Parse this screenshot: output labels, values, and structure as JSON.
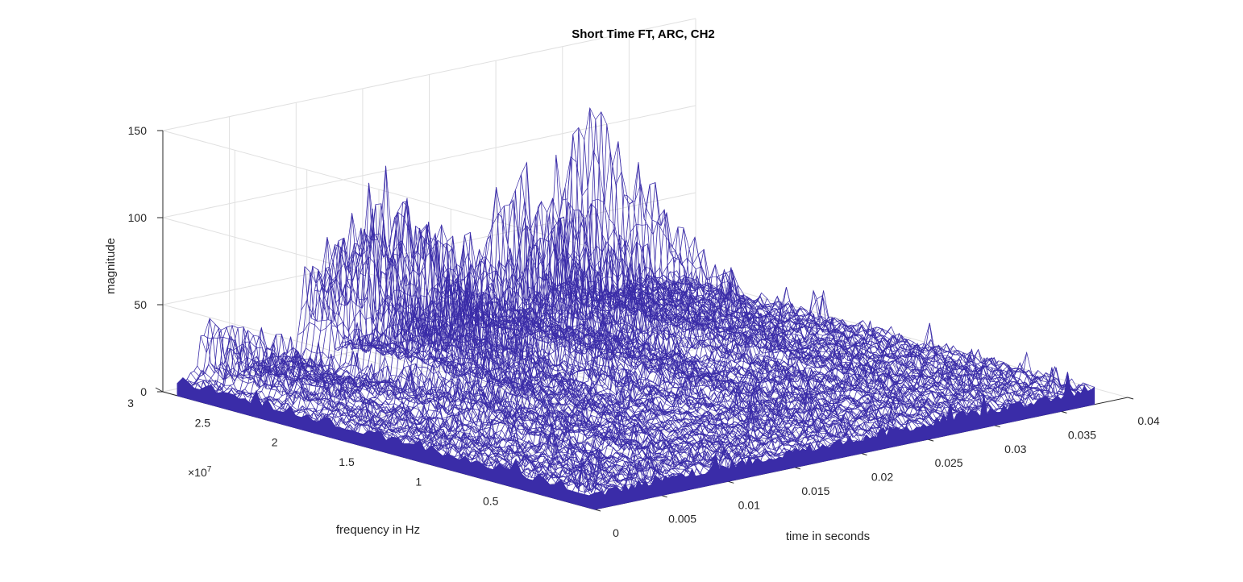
{
  "chart_data": {
    "type": "surface-mesh",
    "title": "Short Time FT, ARC, CH2",
    "xlabel": "time in seconds",
    "ylabel": "frequency in Hz",
    "zlabel": "magnitude",
    "y_exponent_label": "×10",
    "y_exponent_power": "7",
    "xlim": [
      0,
      0.04
    ],
    "ylim": [
      0,
      3
    ],
    "zlim": [
      0,
      150
    ],
    "x_ticks": [
      "0",
      "0.005",
      "0.01",
      "0.015",
      "0.02",
      "0.025",
      "0.03",
      "0.035",
      "0.04"
    ],
    "x_tick_values": [
      0,
      0.005,
      0.01,
      0.015,
      0.02,
      0.025,
      0.03,
      0.035,
      0.04
    ],
    "y_ticks": [
      "0.5",
      "1",
      "1.5",
      "2",
      "2.5",
      "3"
    ],
    "y_tick_values": [
      0.5,
      1,
      1.5,
      2,
      2.5,
      3
    ],
    "z_ticks": [
      "0",
      "50",
      "100",
      "150"
    ],
    "z_tick_values": [
      0,
      50,
      100,
      150
    ],
    "grid": true,
    "mesh_color": "#3a2ca8",
    "x_range_data": [
      0,
      0.0375
    ],
    "y_range_data": [
      0,
      2.9
    ],
    "baseline_level": 5,
    "peaks": [
      {
        "t": 0.0105,
        "f": 2.4,
        "z": 116,
        "note": "tallest peak cluster near t=0.01"
      },
      {
        "t": 0.0112,
        "f": 2.3,
        "z": 108
      },
      {
        "t": 0.0095,
        "f": 2.5,
        "z": 100
      },
      {
        "t": 0.0125,
        "f": 2.0,
        "z": 75
      },
      {
        "t": 0.0155,
        "f": 2.6,
        "z": 82
      },
      {
        "t": 0.0175,
        "f": 2.1,
        "z": 95
      },
      {
        "t": 0.02,
        "f": 2.3,
        "z": 118
      },
      {
        "t": 0.021,
        "f": 2.0,
        "z": 100
      },
      {
        "t": 0.0265,
        "f": 2.2,
        "z": 60
      },
      {
        "t": 0.0285,
        "f": 2.6,
        "z": 124
      },
      {
        "t": 0.029,
        "f": 2.0,
        "z": 55
      },
      {
        "t": 0.002,
        "f": 2.8,
        "z": 38
      },
      {
        "t": 0.004,
        "f": 2.6,
        "z": 30
      },
      {
        "t": 0.006,
        "f": 1.6,
        "z": 30
      },
      {
        "t": 0.008,
        "f": 1.2,
        "z": 22
      }
    ]
  }
}
